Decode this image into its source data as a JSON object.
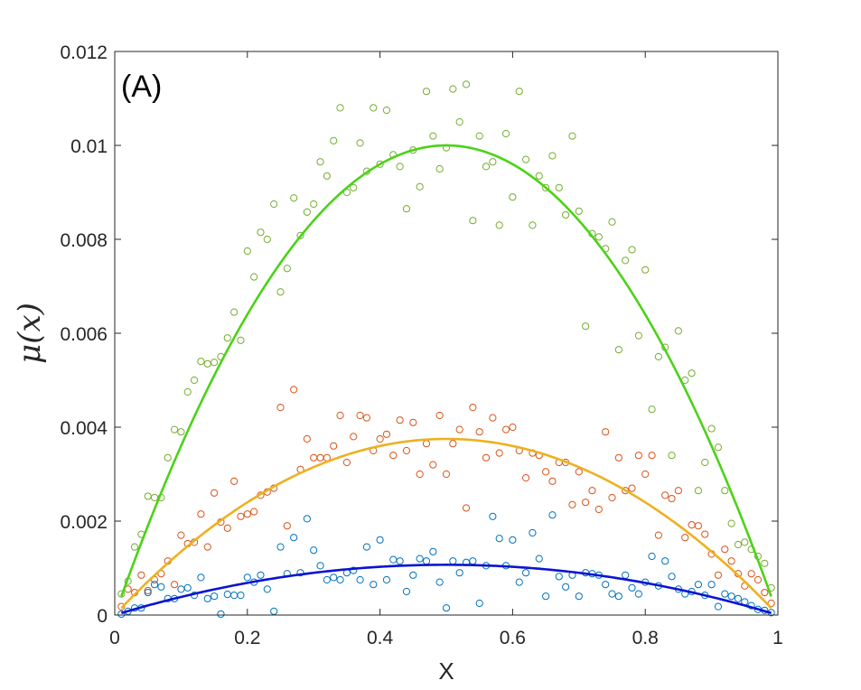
{
  "chart_data": {
    "type": "scatter",
    "panel_label": "(A)",
    "xlabel": "X",
    "ylabel": "μ(x)",
    "xlim": [
      0,
      1
    ],
    "ylim": [
      0,
      0.012
    ],
    "x_ticks": [
      0,
      0.2,
      0.4,
      0.6,
      0.8,
      1
    ],
    "x_tick_labels": [
      "0",
      "0.2",
      "0.4",
      "0.6",
      "0.8",
      "1"
    ],
    "y_ticks": [
      0,
      0.002,
      0.004,
      0.006,
      0.008,
      0.01,
      0.012
    ],
    "y_tick_labels": [
      "0",
      "0.002",
      "0.004",
      "0.006",
      "0.008",
      "0.01",
      "0.012"
    ],
    "grid": false,
    "series": [
      {
        "name": "green-markers",
        "kind": "markers",
        "color": "#77ac30",
        "x": [
          0.01,
          0.02,
          0.03,
          0.04,
          0.05,
          0.06,
          0.07,
          0.08,
          0.09,
          0.1,
          0.11,
          0.12,
          0.13,
          0.14,
          0.15,
          0.16,
          0.17,
          0.18,
          0.19,
          0.2,
          0.21,
          0.22,
          0.23,
          0.24,
          0.25,
          0.26,
          0.27,
          0.28,
          0.29,
          0.3,
          0.31,
          0.32,
          0.33,
          0.34,
          0.35,
          0.36,
          0.37,
          0.38,
          0.39,
          0.4,
          0.41,
          0.42,
          0.43,
          0.44,
          0.45,
          0.46,
          0.47,
          0.48,
          0.49,
          0.5,
          0.51,
          0.52,
          0.53,
          0.54,
          0.55,
          0.56,
          0.57,
          0.58,
          0.59,
          0.6,
          0.61,
          0.62,
          0.63,
          0.64,
          0.65,
          0.66,
          0.67,
          0.68,
          0.69,
          0.7,
          0.71,
          0.72,
          0.73,
          0.74,
          0.75,
          0.76,
          0.77,
          0.78,
          0.79,
          0.8,
          0.81,
          0.82,
          0.83,
          0.84,
          0.85,
          0.86,
          0.87,
          0.88,
          0.89,
          0.9,
          0.91,
          0.92,
          0.93,
          0.94,
          0.95,
          0.96,
          0.97,
          0.98,
          0.99
        ],
        "y": [
          0.00045,
          0.00072,
          0.00145,
          0.00172,
          0.00253,
          0.0025,
          0.0025,
          0.00335,
          0.00395,
          0.0039,
          0.00475,
          0.005,
          0.0054,
          0.00535,
          0.00538,
          0.0055,
          0.0059,
          0.00645,
          0.00585,
          0.00775,
          0.0072,
          0.00815,
          0.008,
          0.00875,
          0.00688,
          0.00738,
          0.00888,
          0.00808,
          0.00858,
          0.00875,
          0.00965,
          0.00935,
          0.0101,
          0.0108,
          0.009,
          0.0091,
          0.01005,
          0.00945,
          0.0108,
          0.0096,
          0.01075,
          0.0098,
          0.00955,
          0.00865,
          0.0099,
          0.00912,
          0.01115,
          0.0102,
          0.0095,
          0.00995,
          0.0112,
          0.0105,
          0.0113,
          0.0084,
          0.0102,
          0.00955,
          0.00965,
          0.0083,
          0.01025,
          0.0089,
          0.01115,
          0.0097,
          0.0083,
          0.00935,
          0.0091,
          0.00978,
          0.0091,
          0.00852,
          0.0102,
          0.0086,
          0.00615,
          0.00812,
          0.00805,
          0.0078,
          0.00837,
          0.00565,
          0.00755,
          0.00778,
          0.00595,
          0.00735,
          0.00438,
          0.0055,
          0.0057,
          0.0034,
          0.00605,
          0.005,
          0.00515,
          0.00265,
          0.00325,
          0.00397,
          0.00357,
          0.00265,
          0.00195,
          0.0015,
          0.00155,
          0.0014,
          0.00125,
          0.0011,
          0.00058
        ]
      },
      {
        "name": "red-markers",
        "kind": "markers",
        "color": "#d95319",
        "x": [
          0.01,
          0.02,
          0.03,
          0.04,
          0.05,
          0.06,
          0.07,
          0.08,
          0.09,
          0.1,
          0.11,
          0.12,
          0.13,
          0.14,
          0.15,
          0.16,
          0.17,
          0.18,
          0.19,
          0.2,
          0.21,
          0.22,
          0.23,
          0.24,
          0.25,
          0.26,
          0.27,
          0.28,
          0.29,
          0.3,
          0.31,
          0.32,
          0.33,
          0.34,
          0.35,
          0.36,
          0.37,
          0.38,
          0.39,
          0.4,
          0.41,
          0.42,
          0.43,
          0.44,
          0.45,
          0.46,
          0.47,
          0.48,
          0.49,
          0.5,
          0.51,
          0.52,
          0.53,
          0.54,
          0.55,
          0.56,
          0.57,
          0.58,
          0.59,
          0.6,
          0.61,
          0.62,
          0.63,
          0.64,
          0.65,
          0.66,
          0.67,
          0.68,
          0.69,
          0.7,
          0.71,
          0.72,
          0.73,
          0.74,
          0.75,
          0.76,
          0.77,
          0.78,
          0.79,
          0.8,
          0.81,
          0.82,
          0.83,
          0.84,
          0.85,
          0.86,
          0.87,
          0.88,
          0.89,
          0.9,
          0.91,
          0.92,
          0.93,
          0.94,
          0.95,
          0.96,
          0.97,
          0.98,
          0.99
        ],
        "y": [
          0.00018,
          0.00055,
          0.00048,
          0.00085,
          0.00052,
          0.00075,
          0.00088,
          0.00115,
          0.00065,
          0.0017,
          0.00152,
          0.00155,
          0.00215,
          0.00145,
          0.0026,
          0.00198,
          0.00185,
          0.00285,
          0.0021,
          0.00215,
          0.0022,
          0.00255,
          0.00262,
          0.0027,
          0.00442,
          0.0019,
          0.0048,
          0.0031,
          0.00375,
          0.00335,
          0.00335,
          0.00335,
          0.0036,
          0.00425,
          0.00325,
          0.0038,
          0.00425,
          0.0042,
          0.0035,
          0.00375,
          0.00385,
          0.0034,
          0.00415,
          0.0035,
          0.0041,
          0.003,
          0.00365,
          0.0032,
          0.00425,
          0.003,
          0.00365,
          0.00395,
          0.00228,
          0.00442,
          0.0039,
          0.00335,
          0.0042,
          0.00345,
          0.00395,
          0.004,
          0.0035,
          0.00292,
          0.00345,
          0.0034,
          0.00305,
          0.00285,
          0.00325,
          0.00325,
          0.00235,
          0.00305,
          0.0024,
          0.00265,
          0.00225,
          0.0039,
          0.0025,
          0.00335,
          0.00265,
          0.0027,
          0.0034,
          0.003,
          0.0034,
          0.0017,
          0.00255,
          0.00248,
          0.00265,
          0.00165,
          0.00192,
          0.0019,
          0.00172,
          0.0013,
          0.00085,
          0.0014,
          0.00115,
          0.00088,
          0.00062,
          0.00088,
          0.00075,
          0.00048,
          0.00025
        ]
      },
      {
        "name": "blue-markers",
        "kind": "markers",
        "color": "#0072bd",
        "x": [
          0.01,
          0.02,
          0.03,
          0.04,
          0.05,
          0.06,
          0.07,
          0.08,
          0.09,
          0.1,
          0.11,
          0.12,
          0.13,
          0.14,
          0.15,
          0.16,
          0.17,
          0.18,
          0.19,
          0.2,
          0.21,
          0.22,
          0.23,
          0.24,
          0.25,
          0.26,
          0.27,
          0.28,
          0.29,
          0.3,
          0.31,
          0.32,
          0.33,
          0.34,
          0.35,
          0.36,
          0.37,
          0.38,
          0.39,
          0.4,
          0.41,
          0.42,
          0.43,
          0.44,
          0.45,
          0.46,
          0.47,
          0.48,
          0.49,
          0.5,
          0.51,
          0.52,
          0.53,
          0.54,
          0.55,
          0.56,
          0.57,
          0.58,
          0.59,
          0.6,
          0.61,
          0.62,
          0.63,
          0.64,
          0.65,
          0.66,
          0.67,
          0.68,
          0.69,
          0.7,
          0.71,
          0.72,
          0.73,
          0.74,
          0.75,
          0.76,
          0.77,
          0.78,
          0.79,
          0.8,
          0.81,
          0.82,
          0.83,
          0.84,
          0.85,
          0.86,
          0.87,
          0.88,
          0.89,
          0.9,
          0.91,
          0.92,
          0.93,
          0.94,
          0.95,
          0.96,
          0.97,
          0.98,
          0.99
        ],
        "y": [
          2e-05,
          8e-05,
          0.00015,
          0.00015,
          0.00048,
          0.00065,
          0.0006,
          0.00035,
          0.00035,
          0.00055,
          0.00058,
          0.00042,
          0.0008,
          0.00035,
          0.0004,
          2e-05,
          0.00044,
          0.00042,
          0.00042,
          0.0008,
          0.0007,
          0.00085,
          0.00055,
          8e-05,
          0.00145,
          0.00088,
          0.00165,
          0.0009,
          0.00205,
          0.00138,
          0.00105,
          0.00075,
          0.0008,
          0.00075,
          0.0009,
          0.00095,
          0.00075,
          0.00145,
          0.00065,
          0.0016,
          0.00075,
          0.00118,
          0.00115,
          0.0005,
          0.00085,
          0.0012,
          0.00115,
          0.00135,
          0.0007,
          0.00015,
          0.00115,
          0.0009,
          0.00112,
          0.00115,
          0.00025,
          0.00105,
          0.0021,
          0.00163,
          0.00105,
          0.0016,
          0.0007,
          0.0009,
          0.00175,
          0.0012,
          0.0004,
          0.00213,
          0.00082,
          0.0006,
          0.00085,
          0.0004,
          0.0009,
          0.00088,
          0.00085,
          0.00065,
          0.00045,
          0.0004,
          0.00085,
          0.00058,
          0.00045,
          0.0007,
          0.00125,
          0.00062,
          0.00115,
          0.00082,
          0.00055,
          0.00045,
          0.0005,
          0.00065,
          0.00042,
          0.00065,
          0.00018,
          0.00045,
          0.0004,
          0.00035,
          0.00028,
          0.0002,
          0.00012,
          0.0001,
          5e-05
        ]
      },
      {
        "name": "green-curve",
        "kind": "curve",
        "color": "#4cd218",
        "amplitude": 0.01,
        "x": [
          0.01,
          0.05,
          0.1,
          0.15,
          0.2,
          0.25,
          0.3,
          0.35,
          0.4,
          0.45,
          0.5,
          0.55,
          0.6,
          0.65,
          0.7,
          0.75,
          0.8,
          0.85,
          0.9,
          0.95,
          0.99
        ],
        "y": [
          0.000396,
          0.0019,
          0.0036,
          0.0051,
          0.0064,
          0.0075,
          0.0084,
          0.0091,
          0.0096,
          0.0099,
          0.01,
          0.0099,
          0.0096,
          0.0091,
          0.0084,
          0.0075,
          0.0064,
          0.0051,
          0.0036,
          0.0019,
          0.000396
        ]
      },
      {
        "name": "orange-curve",
        "kind": "curve",
        "color": "#edb120",
        "amplitude": 0.00375,
        "x": [
          0.01,
          0.05,
          0.1,
          0.15,
          0.2,
          0.25,
          0.3,
          0.35,
          0.4,
          0.45,
          0.5,
          0.55,
          0.6,
          0.65,
          0.7,
          0.75,
          0.8,
          0.85,
          0.9,
          0.95,
          0.99
        ],
        "y": [
          0.000149,
          0.000713,
          0.00135,
          0.00191,
          0.0024,
          0.00281,
          0.00315,
          0.00341,
          0.0036,
          0.00371,
          0.00375,
          0.00371,
          0.0036,
          0.00341,
          0.00315,
          0.00281,
          0.0024,
          0.00191,
          0.00135,
          0.000713,
          0.000149
        ]
      },
      {
        "name": "blue-curve",
        "kind": "curve",
        "color": "#0a14d2",
        "amplitude": 0.00107,
        "x": [
          0.01,
          0.05,
          0.1,
          0.15,
          0.2,
          0.25,
          0.3,
          0.35,
          0.4,
          0.45,
          0.5,
          0.55,
          0.6,
          0.65,
          0.7,
          0.75,
          0.8,
          0.85,
          0.9,
          0.95,
          0.99
        ],
        "y": [
          4.24e-05,
          0.000203,
          0.000385,
          0.000546,
          0.000685,
          0.000803,
          0.000899,
          0.000974,
          0.00103,
          0.00106,
          0.00107,
          0.00106,
          0.00103,
          0.000974,
          0.000899,
          0.000803,
          0.000685,
          0.000546,
          0.000385,
          0.000203,
          4.24e-05
        ]
      }
    ]
  }
}
